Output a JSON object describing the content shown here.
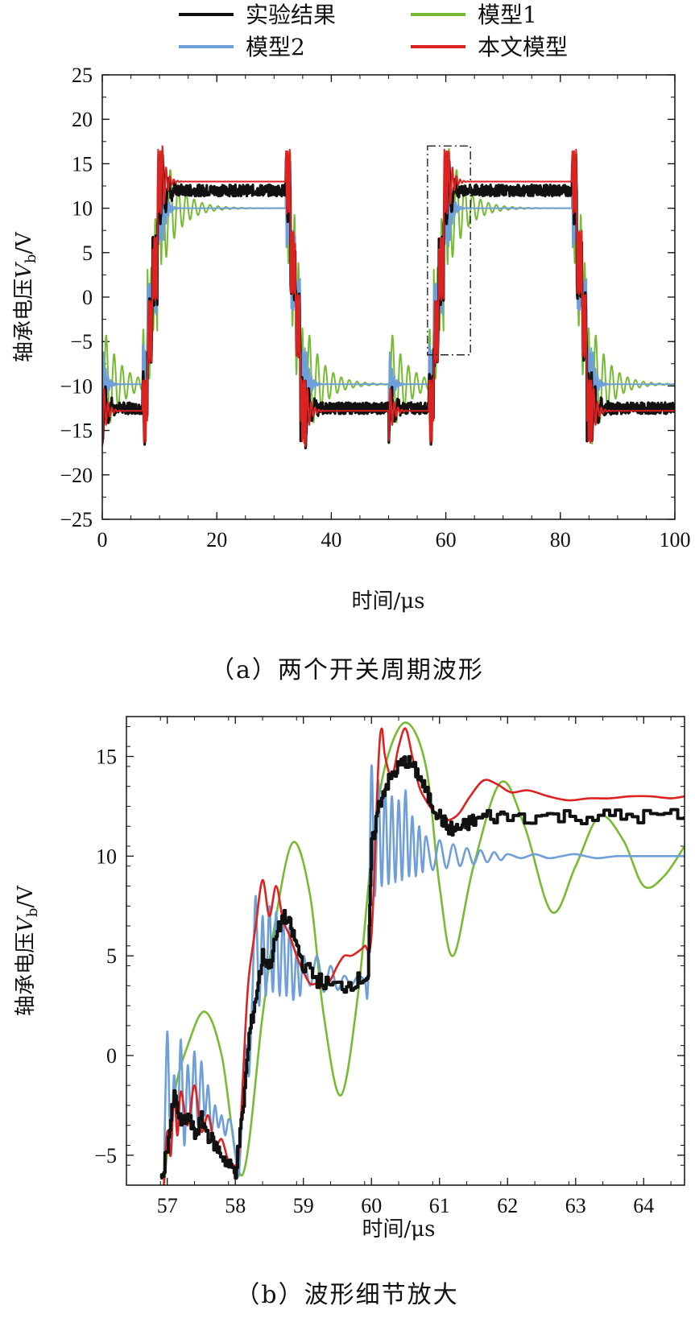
{
  "colors": {
    "experiment": "#111111",
    "model1": "#77bb33",
    "model2": "#6f9fd8",
    "this_model": "#dd2222"
  },
  "legend": {
    "experiment": "实验结果",
    "model1": "模型1",
    "model2": "模型2",
    "this_model": "本文模型"
  },
  "chart_data": [
    {
      "type": "line",
      "panel": "a",
      "caption": "（a）两个开关周期波形",
      "xlabel": "时间/μs",
      "ylabel": "轴承电压V_b/V",
      "ylabel_main": "轴承电压",
      "ylabel_sym": "V",
      "ylabel_sub": "b",
      "ylabel_unit": "/V",
      "xlim": [
        0,
        100
      ],
      "ylim": [
        -25,
        25
      ],
      "xticks": [
        0,
        20,
        40,
        60,
        80,
        100
      ],
      "yticks": [
        -25,
        -20,
        -15,
        -10,
        -5,
        0,
        5,
        10,
        15,
        20,
        25
      ],
      "xtick_labels": [
        "0",
        "20",
        "40",
        "60",
        "80",
        "100"
      ],
      "ytick_labels": [
        "−25",
        "−20",
        "−15",
        "−10",
        "−5",
        "0",
        "5",
        "10",
        "15",
        "20",
        "25"
      ],
      "annotation": "dash-dot zoom box around 57–64 μs",
      "annotation_box": {
        "x0": 56.8,
        "x1": 64.3,
        "y0": -6.5,
        "y1": 17.0
      },
      "series": [
        {
          "key": "experiment",
          "name": "实验结果",
          "period": 50,
          "segments": [
            [
              0,
              7,
              -12.5
            ],
            [
              7,
              10.5,
              0
            ],
            [
              10.5,
              32,
              12
            ],
            [
              32,
              35.5,
              0
            ],
            [
              35.5,
              50,
              -12.5
            ]
          ],
          "noise": 0.8,
          "ring_amp": 4,
          "ring_freq": 0.9,
          "ring_decay": 1.2
        },
        {
          "key": "model1",
          "name": "模型1",
          "period": 50,
          "segments": [
            [
              0,
              7,
              -9.8
            ],
            [
              7,
              10.5,
              0
            ],
            [
              10.5,
              32,
              10
            ],
            [
              32,
              35.5,
              0
            ],
            [
              35.5,
              50,
              -9.8
            ]
          ],
          "ring_amp": 7,
          "ring_freq": 0.72,
          "ring_decay": 0.35
        },
        {
          "key": "model2",
          "name": "模型2",
          "period": 50,
          "segments": [
            [
              0,
              7,
              -9.8
            ],
            [
              7,
              10.5,
              0
            ],
            [
              10.5,
              32,
              10
            ],
            [
              32,
              35.5,
              0
            ],
            [
              35.5,
              50,
              -9.8
            ]
          ],
          "ring_amp": 5,
          "ring_freq": 2.4,
          "ring_decay": 1.6
        },
        {
          "key": "this_model",
          "name": "本文模型",
          "period": 50,
          "segments": [
            [
              0,
              7,
              -12.8
            ],
            [
              7,
              10.5,
              0
            ],
            [
              10.5,
              32,
              13
            ],
            [
              32,
              35.5,
              0
            ],
            [
              35.5,
              50,
              -12.8
            ]
          ],
          "ring_amp": 4,
          "ring_freq": 1.5,
          "ring_decay": 1.4
        }
      ]
    },
    {
      "type": "line",
      "panel": "b",
      "caption": "（b）波形细节放大",
      "xlabel": "时间/μs",
      "ylabel": "轴承电压V_b/V",
      "ylabel_main": "轴承电压",
      "ylabel_sym": "V",
      "ylabel_sub": "b",
      "ylabel_unit": "/V",
      "xlim": [
        56.4,
        64.6
      ],
      "ylim": [
        -6.5,
        17.0
      ],
      "xticks": [
        57,
        58,
        59,
        60,
        61,
        62,
        63,
        64
      ],
      "yticks": [
        -5,
        0,
        5,
        10,
        15
      ],
      "xtick_labels": [
        "57",
        "58",
        "59",
        "60",
        "61",
        "62",
        "63",
        "64"
      ],
      "ytick_labels": [
        "−5",
        "0",
        "5",
        "10",
        "15"
      ],
      "series": [
        {
          "key": "experiment",
          "name": "实验结果",
          "x": [
            56.9,
            57.0,
            57.1,
            57.2,
            57.3,
            57.4,
            57.5,
            57.6,
            57.7,
            57.8,
            57.9,
            58.0,
            58.1,
            58.2,
            58.3,
            58.4,
            58.5,
            58.6,
            58.7,
            58.8,
            58.9,
            59.0,
            59.2,
            59.4,
            59.6,
            59.8,
            59.95,
            60.0,
            60.1,
            60.2,
            60.3,
            60.4,
            60.5,
            60.6,
            60.7,
            60.8,
            60.9,
            61.0,
            61.1,
            61.2,
            61.3,
            61.4,
            61.5,
            61.7,
            62.0,
            62.5,
            63.0,
            63.5,
            64.0,
            64.6
          ],
          "y": [
            -6.5,
            -4.5,
            -2.0,
            -3.5,
            -3.0,
            -4.0,
            -3.2,
            -4.0,
            -4.5,
            -5.0,
            -5.5,
            -5.8,
            -3.0,
            1.0,
            3.0,
            5.0,
            4.5,
            6.0,
            7.0,
            6.5,
            5.5,
            4.5,
            3.8,
            3.5,
            3.5,
            3.8,
            4.0,
            10.5,
            12.5,
            13.5,
            14.0,
            14.5,
            14.8,
            14.5,
            14.0,
            13.2,
            12.5,
            12.0,
            11.5,
            11.3,
            11.4,
            11.6,
            11.8,
            12.0,
            12.0,
            12.0,
            12.0,
            12.0,
            12.0,
            12.0
          ],
          "noise": 0.35,
          "stroke": 4
        },
        {
          "key": "model1",
          "name": "模型1",
          "x": [
            56.95,
            57.1,
            57.3,
            57.55,
            57.8,
            58.1,
            58.4,
            58.6,
            58.85,
            59.1,
            59.3,
            59.55,
            59.8,
            60.0,
            60.2,
            60.5,
            60.8,
            61.0,
            61.2,
            61.5,
            61.9,
            62.25,
            62.65,
            63.0,
            63.35,
            63.7,
            64.0,
            64.3,
            64.6
          ],
          "y": [
            -6.5,
            -2.0,
            0.5,
            2.2,
            0.0,
            -6.0,
            2.0,
            7.0,
            10.7,
            8.0,
            2.0,
            -2.0,
            3.0,
            10.0,
            14.5,
            16.7,
            14.5,
            8.5,
            5.0,
            9.5,
            13.7,
            11.5,
            7.2,
            9.5,
            12.0,
            10.8,
            8.5,
            9.0,
            10.5
          ],
          "stroke": 2.6
        },
        {
          "key": "model2",
          "name": "模型2",
          "x": [
            56.95,
            57.0,
            57.05,
            57.1,
            57.15,
            57.2,
            57.25,
            57.3,
            57.35,
            57.4,
            57.45,
            57.5,
            57.55,
            57.6,
            57.65,
            57.7,
            57.75,
            57.8,
            57.85,
            57.9,
            57.95,
            58.0,
            58.05,
            58.1,
            58.15,
            58.2,
            58.25,
            58.3,
            58.35,
            58.4,
            58.45,
            58.5,
            58.55,
            58.6,
            58.65,
            58.7,
            58.75,
            58.8,
            58.85,
            58.9,
            58.95,
            59.0,
            59.1,
            59.2,
            59.3,
            59.4,
            59.5,
            59.6,
            59.7,
            59.8,
            59.9,
            59.95,
            60.0,
            60.05,
            60.1,
            60.15,
            60.2,
            60.25,
            60.3,
            60.35,
            60.4,
            60.45,
            60.5,
            60.55,
            60.6,
            60.65,
            60.7,
            60.75,
            60.8,
            60.9,
            61.0,
            61.1,
            61.2,
            61.3,
            61.4,
            61.5,
            61.6,
            61.7,
            61.8,
            61.9,
            62.0,
            62.2,
            62.4,
            62.6,
            62.8,
            63.0,
            63.3,
            63.6,
            64.0,
            64.3,
            64.6
          ],
          "y": [
            -6.3,
            1.2,
            -5.0,
            -1.0,
            -4.0,
            0.8,
            -4.5,
            -0.5,
            -3.0,
            0.2,
            -3.5,
            -0.3,
            -3.0,
            -1.5,
            -3.8,
            -2.5,
            -3.6,
            -3.0,
            -4.0,
            -3.2,
            -3.6,
            -5.0,
            -6.0,
            -3.0,
            0.5,
            -1.0,
            3.0,
            8.0,
            2.5,
            7.0,
            3.0,
            7.5,
            3.2,
            7.2,
            3.0,
            7.0,
            3.0,
            6.5,
            2.8,
            5.2,
            3.0,
            5.0,
            3.5,
            5.0,
            3.2,
            4.5,
            3.3,
            4.0,
            3.5,
            4.0,
            3.8,
            3.6,
            14.5,
            8.0,
            13.8,
            8.5,
            13.5,
            8.6,
            13.0,
            8.7,
            12.8,
            8.8,
            13.3,
            9.0,
            12.0,
            9.0,
            11.5,
            9.2,
            11.0,
            9.3,
            10.8,
            9.4,
            10.6,
            9.5,
            10.4,
            9.6,
            10.3,
            9.7,
            10.2,
            9.8,
            10.1,
            9.9,
            10.1,
            9.9,
            10.0,
            10.1,
            9.9,
            10.0,
            10.0,
            10.0,
            10.0
          ],
          "stroke": 2.6
        },
        {
          "key": "this_model",
          "name": "本文模型",
          "x": [
            56.95,
            57.0,
            57.05,
            57.1,
            57.15,
            57.2,
            57.3,
            57.4,
            57.5,
            57.6,
            57.7,
            57.8,
            57.9,
            58.0,
            58.05,
            58.1,
            58.15,
            58.2,
            58.3,
            58.4,
            58.5,
            58.6,
            58.7,
            58.8,
            58.9,
            59.0,
            59.1,
            59.2,
            59.3,
            59.4,
            59.5,
            59.6,
            59.7,
            59.8,
            59.9,
            60.0,
            60.1,
            60.15,
            60.2,
            60.3,
            60.4,
            60.5,
            60.6,
            60.7,
            60.8,
            60.9,
            61.0,
            61.1,
            61.2,
            61.3,
            61.45,
            61.65,
            61.85,
            62.05,
            62.3,
            62.6,
            62.9,
            63.2,
            63.5,
            63.8,
            64.1,
            64.4,
            64.6
          ],
          "y": [
            -6.5,
            -3.8,
            -5.0,
            -2.0,
            -4.0,
            -1.8,
            -3.5,
            -1.5,
            -3.8,
            -3.0,
            -4.5,
            -4.2,
            -5.3,
            -5.5,
            -5.0,
            -2.0,
            1.5,
            4.0,
            6.5,
            8.8,
            7.0,
            8.5,
            6.8,
            6.0,
            5.0,
            4.2,
            3.6,
            3.6,
            3.4,
            3.8,
            4.5,
            5.0,
            5.0,
            5.2,
            5.5,
            6.0,
            14.5,
            16.4,
            15.0,
            14.0,
            15.5,
            16.4,
            15.0,
            13.5,
            12.8,
            12.3,
            12.0,
            11.8,
            11.9,
            12.2,
            13.0,
            13.8,
            13.6,
            13.2,
            13.3,
            13.0,
            12.8,
            12.9,
            12.9,
            13.0,
            13.0,
            12.9,
            13.0
          ],
          "stroke": 2.6
        }
      ]
    }
  ]
}
